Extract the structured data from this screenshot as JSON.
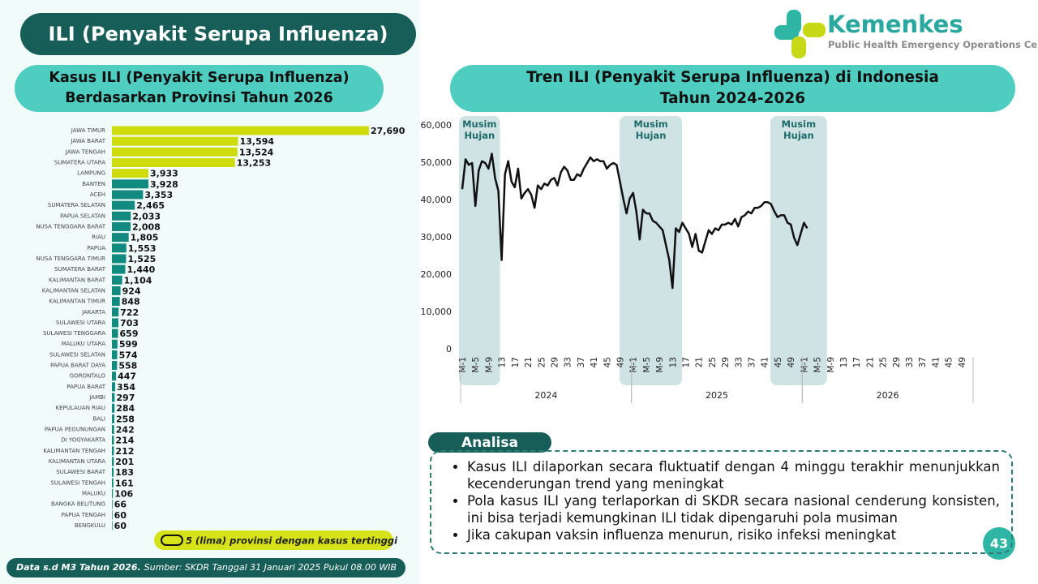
{
  "title": "ILI (Penyakit Serupa Influenza)",
  "logo": {
    "name": "Kemenkes",
    "subtitle": "Public Health Emergency Operations Center"
  },
  "chart_data": [
    {
      "type": "bar",
      "orientation": "horizontal",
      "title": "Kasus ILI (Penyakit Serupa Influenza)\nBerdasarkan Provinsi Tahun 2026",
      "categories": [
        "JAWA TIMUR",
        "JAWA BARAT",
        "JAWA TENGAH",
        "SUMATERA UTARA",
        "LAMPUNG",
        "BANTEN",
        "ACEH",
        "SUMATERA SELATAN",
        "PAPUA SELATAN",
        "NUSA TENGGARA BARAT",
        "RIAU",
        "PAPUA",
        "NUSA TENGGARA TIMUR",
        "SUMATERA BARAT",
        "KALIMANTAN BARAT",
        "KALIMANTAN SELATAN",
        "KALIMANTAN TIMUR",
        "JAKARTA",
        "SULAWESI UTARA",
        "SULAWESI TENGGARA",
        "MALUKU UTARA",
        "SULAWESI SELATAN",
        "PAPUA BARAT DAYA",
        "GORONTALO",
        "PAPUA BARAT",
        "JAMBI",
        "KEPULAUAN RIAU",
        "BALI",
        "PAPUA PEGUNUNGAN",
        "DI YOGYAKARTA",
        "KALIMANTAN TENGAH",
        "KALIMANTAN UTARA",
        "SULAWESI BARAT",
        "SULAWESI TENGAH",
        "MALUKU",
        "BANGKA BELITUNG",
        "PAPUA TENGAH",
        "BENGKULU"
      ],
      "values": [
        27690,
        13594,
        13524,
        13253,
        3933,
        3928,
        3353,
        2465,
        2033,
        2008,
        1805,
        1553,
        1525,
        1440,
        1104,
        924,
        848,
        722,
        703,
        659,
        599,
        574,
        558,
        447,
        354,
        297,
        284,
        258,
        242,
        214,
        212,
        201,
        183,
        161,
        106,
        66,
        60,
        60
      ],
      "value_labels": [
        "27,690",
        "13,594",
        "13,524",
        "13,253",
        "3,933",
        "3,928",
        "3,353",
        "2,465",
        "2,033",
        "2,008",
        "1,805",
        "1,553",
        "1,525",
        "1,440",
        "1,104",
        "924",
        "848",
        "722",
        "703",
        "659",
        "599",
        "574",
        "558",
        "447",
        "354",
        "297",
        "284",
        "258",
        "242",
        "214",
        "212",
        "201",
        "183",
        "161",
        "106",
        "66",
        "60",
        "60"
      ],
      "colors": [
        "#cfdc0c",
        "#cfdc0c",
        "#cfdc0c",
        "#cfdc0c",
        "#cfdc0c",
        "#138a80",
        "#138a80",
        "#138a80",
        "#138a80",
        "#138a80",
        "#138a80",
        "#138a80",
        "#138a80",
        "#138a80",
        "#138a80",
        "#138a80",
        "#138a80",
        "#138a80",
        "#138a80",
        "#138a80",
        "#138a80",
        "#138a80",
        "#138a80",
        "#138a80",
        "#138a80",
        "#138a80",
        "#138a80",
        "#138a80",
        "#138a80",
        "#138a80",
        "#138a80",
        "#138a80",
        "#138a80",
        "#138a80",
        "#138a80",
        "#138a80",
        "#138a80",
        "#138a80"
      ],
      "legend_note": "5 (lima) provinsi dengan kasus tertinggi"
    },
    {
      "type": "line",
      "title": "Tren ILI (Penyakit Serupa Influenza) di Indonesia\nTahun 2024-2026",
      "color": "#111111",
      "x": [
        1,
        2,
        3,
        4,
        5,
        6,
        7,
        8,
        9,
        10,
        11,
        12,
        13,
        14,
        15,
        16,
        17,
        18,
        19,
        20,
        21,
        22,
        23,
        24,
        25,
        26,
        27,
        28,
        29,
        30,
        31,
        32,
        33,
        34,
        35,
        36,
        37,
        38,
        39,
        40,
        41,
        42,
        43,
        44,
        45,
        46,
        47,
        48,
        49,
        50,
        51,
        52,
        53,
        54,
        55,
        56,
        57,
        58,
        59,
        60,
        61,
        62,
        63,
        64,
        65,
        66,
        67,
        68,
        69,
        70,
        71,
        72,
        73,
        74,
        75,
        76,
        77,
        78,
        79,
        80,
        81,
        82,
        83,
        84,
        85,
        86,
        87,
        88,
        89,
        90,
        91,
        92,
        93,
        94,
        95,
        96,
        97,
        98,
        99,
        100,
        101,
        102,
        103,
        104,
        105,
        106
      ],
      "values": [
        43000,
        51000,
        49500,
        50000,
        38500,
        48000,
        50500,
        50000,
        48500,
        52500,
        46000,
        42500,
        24000,
        47000,
        50500,
        45000,
        43500,
        48500,
        40500,
        42000,
        43000,
        41500,
        38000,
        44000,
        43000,
        44500,
        44000,
        45500,
        46000,
        44000,
        47500,
        49000,
        48000,
        45500,
        45500,
        47000,
        46500,
        48500,
        50000,
        51500,
        50500,
        51000,
        50500,
        50500,
        48500,
        49500,
        50000,
        49500,
        45000,
        40500,
        36500,
        40500,
        42000,
        37000,
        29500,
        37500,
        36500,
        36500,
        34500,
        34000,
        33000,
        32000,
        28000,
        24000,
        16500,
        32500,
        31500,
        34000,
        32500,
        31000,
        27500,
        31000,
        26500,
        26000,
        29000,
        32000,
        31000,
        32500,
        32000,
        33500,
        33500,
        34000,
        33500,
        35000,
        33000,
        35500,
        36000,
        37000,
        36500,
        38000,
        38000,
        38500,
        39500,
        39500,
        39000,
        37000,
        35500,
        36000,
        36000,
        34000,
        33500,
        30000,
        28000,
        31000,
        34000,
        32500
      ],
      "xlim": [
        0.5,
        156.5
      ],
      "xticks": [
        {
          "value": 1,
          "label": "M-1"
        },
        {
          "value": 5,
          "label": "M-5"
        },
        {
          "value": 9,
          "label": "M-9"
        },
        {
          "value": 13,
          "label": "13"
        },
        {
          "value": 17,
          "label": "17"
        },
        {
          "value": 21,
          "label": "21"
        },
        {
          "value": 25,
          "label": "25"
        },
        {
          "value": 29,
          "label": "29"
        },
        {
          "value": 33,
          "label": "33"
        },
        {
          "value": 37,
          "label": "37"
        },
        {
          "value": 41,
          "label": "41"
        },
        {
          "value": 45,
          "label": "45"
        },
        {
          "value": 49,
          "label": "49"
        },
        {
          "value": 53,
          "label": "M-1"
        },
        {
          "value": 57,
          "label": "M-5"
        },
        {
          "value": 61,
          "label": "M-9"
        },
        {
          "value": 65,
          "label": "13"
        },
        {
          "value": 69,
          "label": "17"
        },
        {
          "value": 73,
          "label": "21"
        },
        {
          "value": 77,
          "label": "25"
        },
        {
          "value": 81,
          "label": "29"
        },
        {
          "value": 85,
          "label": "33"
        },
        {
          "value": 89,
          "label": "37"
        },
        {
          "value": 93,
          "label": "41"
        },
        {
          "value": 97,
          "label": "45"
        },
        {
          "value": 101,
          "label": "49"
        },
        {
          "value": 105,
          "label": "M-1"
        },
        {
          "value": 109,
          "label": "M-5"
        },
        {
          "value": 113,
          "label": "M-9"
        },
        {
          "value": 117,
          "label": "13"
        },
        {
          "value": 121,
          "label": "17"
        },
        {
          "value": 125,
          "label": "21"
        },
        {
          "value": 129,
          "label": "25"
        },
        {
          "value": 133,
          "label": "29"
        },
        {
          "value": 137,
          "label": "33"
        },
        {
          "value": 141,
          "label": "37"
        },
        {
          "value": 145,
          "label": "41"
        },
        {
          "value": 149,
          "label": "45"
        },
        {
          "value": 153,
          "label": "49"
        }
      ],
      "year_groups": [
        {
          "label": "2024",
          "range": [
            0.5,
            52.5
          ]
        },
        {
          "label": "2025",
          "range": [
            52.5,
            104.5
          ]
        },
        {
          "label": "2026",
          "range": [
            104.5,
            156.5
          ]
        }
      ],
      "bands": [
        {
          "label": "Musim\nHujan",
          "range": [
            0,
            12.5
          ]
        },
        {
          "label": "Musim\nHujan",
          "range": [
            48.9,
            67.9
          ]
        },
        {
          "label": "Musim\nHujan",
          "range": [
            94.8,
            112
          ]
        }
      ],
      "ylim": [
        0,
        60000
      ],
      "yticks": [
        0,
        {
          "value": 10000,
          "label": "10,000"
        },
        {
          "value": 20000,
          "label": "20,000"
        },
        {
          "value": 30000,
          "label": "30,000"
        },
        {
          "value": 40000,
          "label": "40,000"
        },
        {
          "value": 50000,
          "label": "50,000"
        },
        {
          "value": 60000,
          "label": "60,000"
        }
      ],
      "grid": false
    }
  ],
  "analysis": {
    "title": "Analisa",
    "points": [
      "Kasus ILI dilaporkan secara fluktuatif dengan 4 minggu terakhir menunjukkan kecenderungan trend yang meningkat",
      "Pola kasus ILI yang terlaporkan di SKDR secara nasional cenderung konsisten, ini bisa terjadi kemungkinan ILI tidak dipengaruhi pola musiman",
      "Jika cakupan vaksin influenza menurun, risiko infeksi meningkat"
    ]
  },
  "footer": {
    "note": "Data s.d M3 Tahun 2026.",
    "source": "Sumber: SKDR Tanggal 31 Januari 2025 Pukul 08.00 WIB"
  },
  "page_number": "43"
}
